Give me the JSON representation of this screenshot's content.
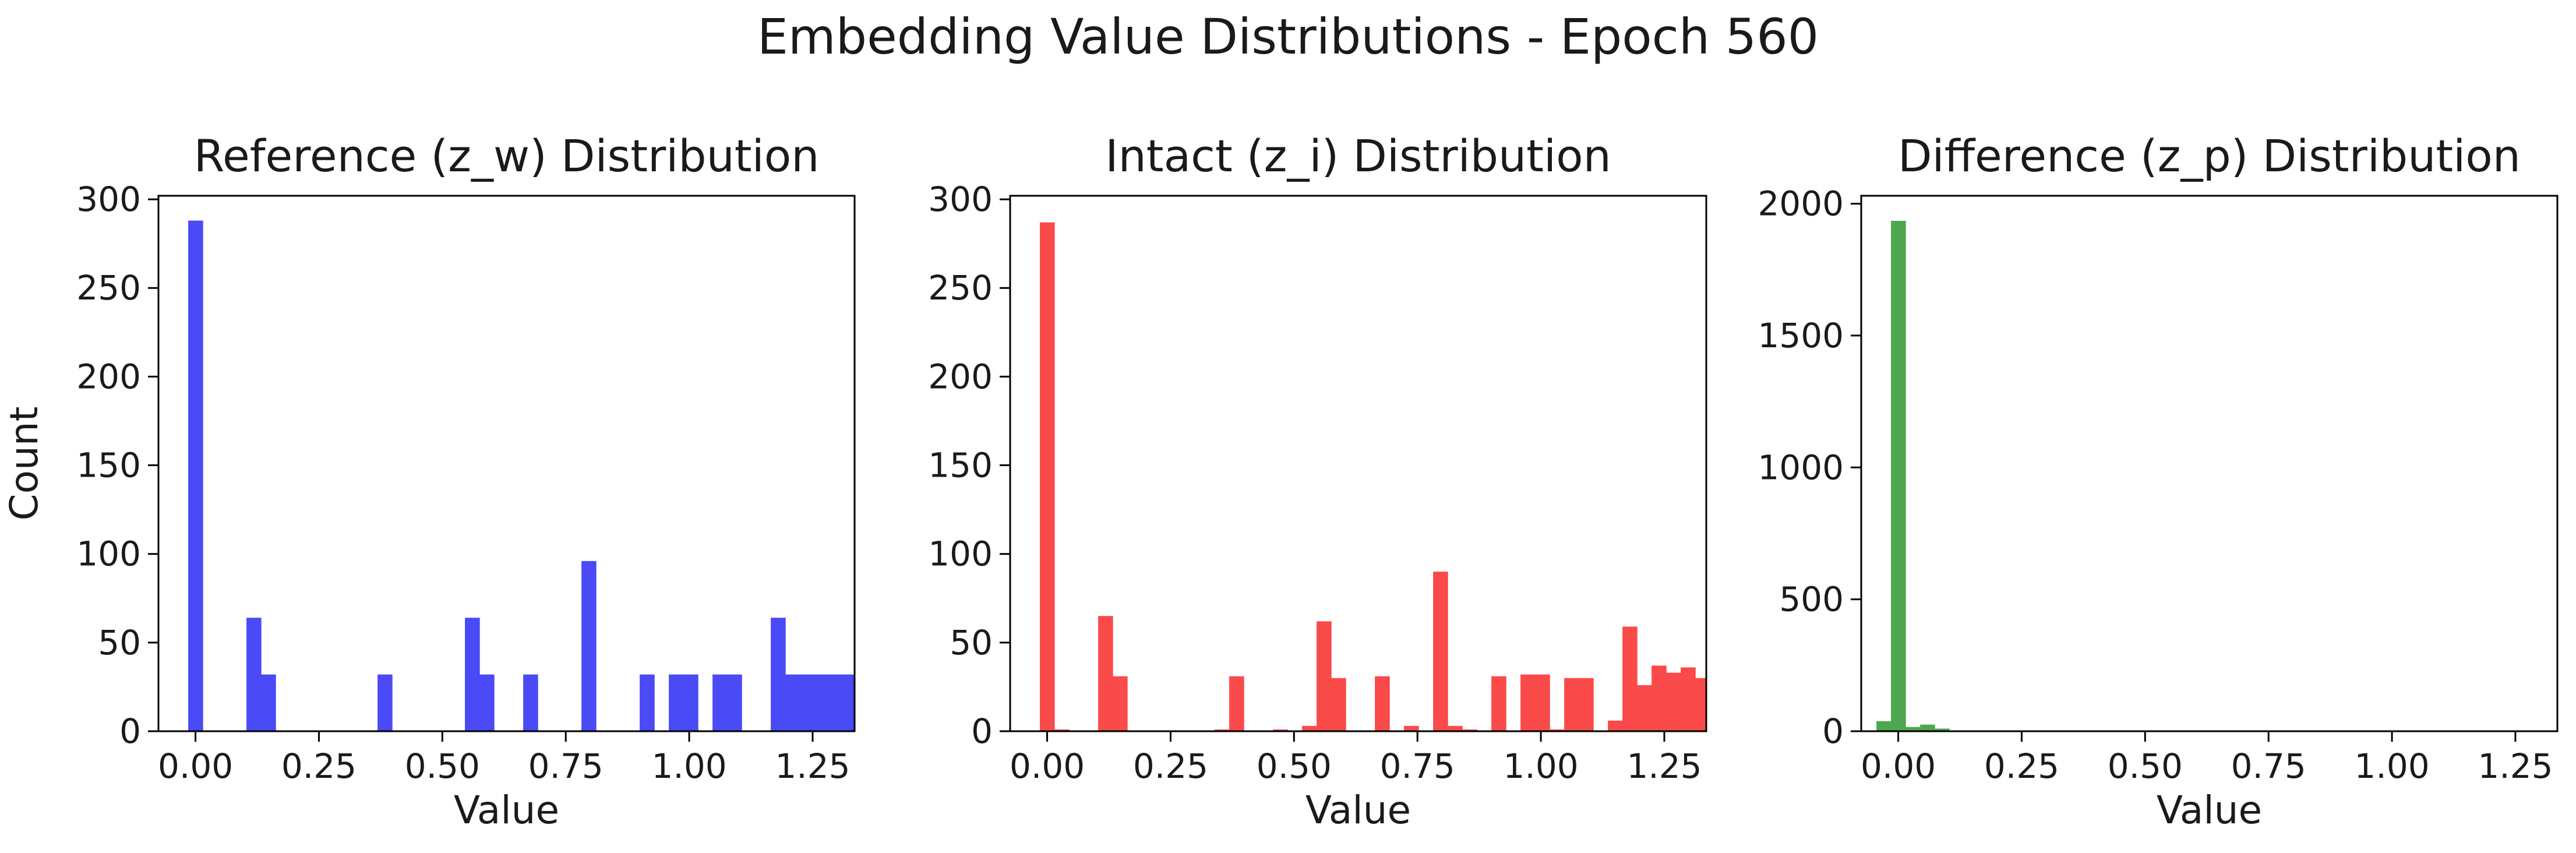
{
  "figure": {
    "title": "Embedding Value Distributions - Epoch 560"
  },
  "chart_data": [
    {
      "type": "bar",
      "title": "Reference (z_w) Distribution",
      "xlabel": "Value",
      "ylabel": "Count",
      "color": "#4a4af7",
      "xlim": [
        -0.075,
        1.335
      ],
      "ylim": [
        0,
        302
      ],
      "xticks": [
        "0.00",
        "0.25",
        "0.50",
        "0.75",
        "1.00",
        "1.25"
      ],
      "yticks": [
        "0",
        "50",
        "100",
        "150",
        "200",
        "250",
        "300"
      ],
      "bin_width": 0.0295,
      "bins": [
        {
          "x": 0.0,
          "count": 288
        },
        {
          "x": 0.118,
          "count": 64
        },
        {
          "x": 0.1475,
          "count": 32
        },
        {
          "x": 0.3835,
          "count": 32
        },
        {
          "x": 0.5605,
          "count": 64
        },
        {
          "x": 0.59,
          "count": 32
        },
        {
          "x": 0.6785,
          "count": 32
        },
        {
          "x": 0.7965,
          "count": 96
        },
        {
          "x": 0.9145,
          "count": 32
        },
        {
          "x": 0.9735,
          "count": 32
        },
        {
          "x": 1.003,
          "count": 32
        },
        {
          "x": 1.062,
          "count": 32
        },
        {
          "x": 1.0915,
          "count": 32
        },
        {
          "x": 1.18,
          "count": 64
        },
        {
          "x": 1.2095,
          "count": 32
        },
        {
          "x": 1.239,
          "count": 32
        },
        {
          "x": 1.2685,
          "count": 32
        },
        {
          "x": 1.298,
          "count": 32
        },
        {
          "x": 1.3275,
          "count": 32
        }
      ]
    },
    {
      "type": "bar",
      "title": "Intact (z_i) Distribution",
      "xlabel": "Value",
      "ylabel": "",
      "color": "#fa4a4a",
      "xlim": [
        -0.075,
        1.335
      ],
      "ylim": [
        0,
        302
      ],
      "xticks": [
        "0.00",
        "0.25",
        "0.50",
        "0.75",
        "1.00",
        "1.25"
      ],
      "yticks": [
        "0",
        "50",
        "100",
        "150",
        "200",
        "250",
        "300"
      ],
      "bin_width": 0.0295,
      "bins": [
        {
          "x": 0.0,
          "count": 287
        },
        {
          "x": 0.0295,
          "count": 1
        },
        {
          "x": 0.118,
          "count": 65
        },
        {
          "x": 0.1475,
          "count": 31
        },
        {
          "x": 0.354,
          "count": 1
        },
        {
          "x": 0.3835,
          "count": 31
        },
        {
          "x": 0.472,
          "count": 1
        },
        {
          "x": 0.531,
          "count": 3
        },
        {
          "x": 0.5605,
          "count": 62
        },
        {
          "x": 0.59,
          "count": 30
        },
        {
          "x": 0.6785,
          "count": 31
        },
        {
          "x": 0.7375,
          "count": 3
        },
        {
          "x": 0.7965,
          "count": 90
        },
        {
          "x": 0.826,
          "count": 3
        },
        {
          "x": 0.8555,
          "count": 1
        },
        {
          "x": 0.9145,
          "count": 31
        },
        {
          "x": 0.9735,
          "count": 32
        },
        {
          "x": 1.003,
          "count": 32
        },
        {
          "x": 1.0325,
          "count": 1
        },
        {
          "x": 1.062,
          "count": 30
        },
        {
          "x": 1.0915,
          "count": 30
        },
        {
          "x": 1.1505,
          "count": 6
        },
        {
          "x": 1.18,
          "count": 59
        },
        {
          "x": 1.2095,
          "count": 26
        },
        {
          "x": 1.239,
          "count": 37
        },
        {
          "x": 1.2685,
          "count": 33
        },
        {
          "x": 1.298,
          "count": 36
        },
        {
          "x": 1.3275,
          "count": 30
        }
      ]
    },
    {
      "type": "bar",
      "title": "Difference (z_p) Distribution",
      "xlabel": "Value",
      "ylabel": "",
      "color": "#4ea64e",
      "xlim": [
        -0.075,
        1.335
      ],
      "ylim": [
        0,
        2030
      ],
      "xticks": [
        "0.00",
        "0.25",
        "0.50",
        "0.75",
        "1.00",
        "1.25"
      ],
      "yticks": [
        "0",
        "500",
        "1000",
        "1500",
        "2000"
      ],
      "bin_width": 0.0295,
      "bins": [
        {
          "x": -0.0295,
          "count": 38
        },
        {
          "x": 0.0,
          "count": 1935
        },
        {
          "x": 0.0295,
          "count": 16
        },
        {
          "x": 0.059,
          "count": 25
        },
        {
          "x": 0.0885,
          "count": 10
        },
        {
          "x": 0.118,
          "count": 3
        }
      ]
    }
  ]
}
